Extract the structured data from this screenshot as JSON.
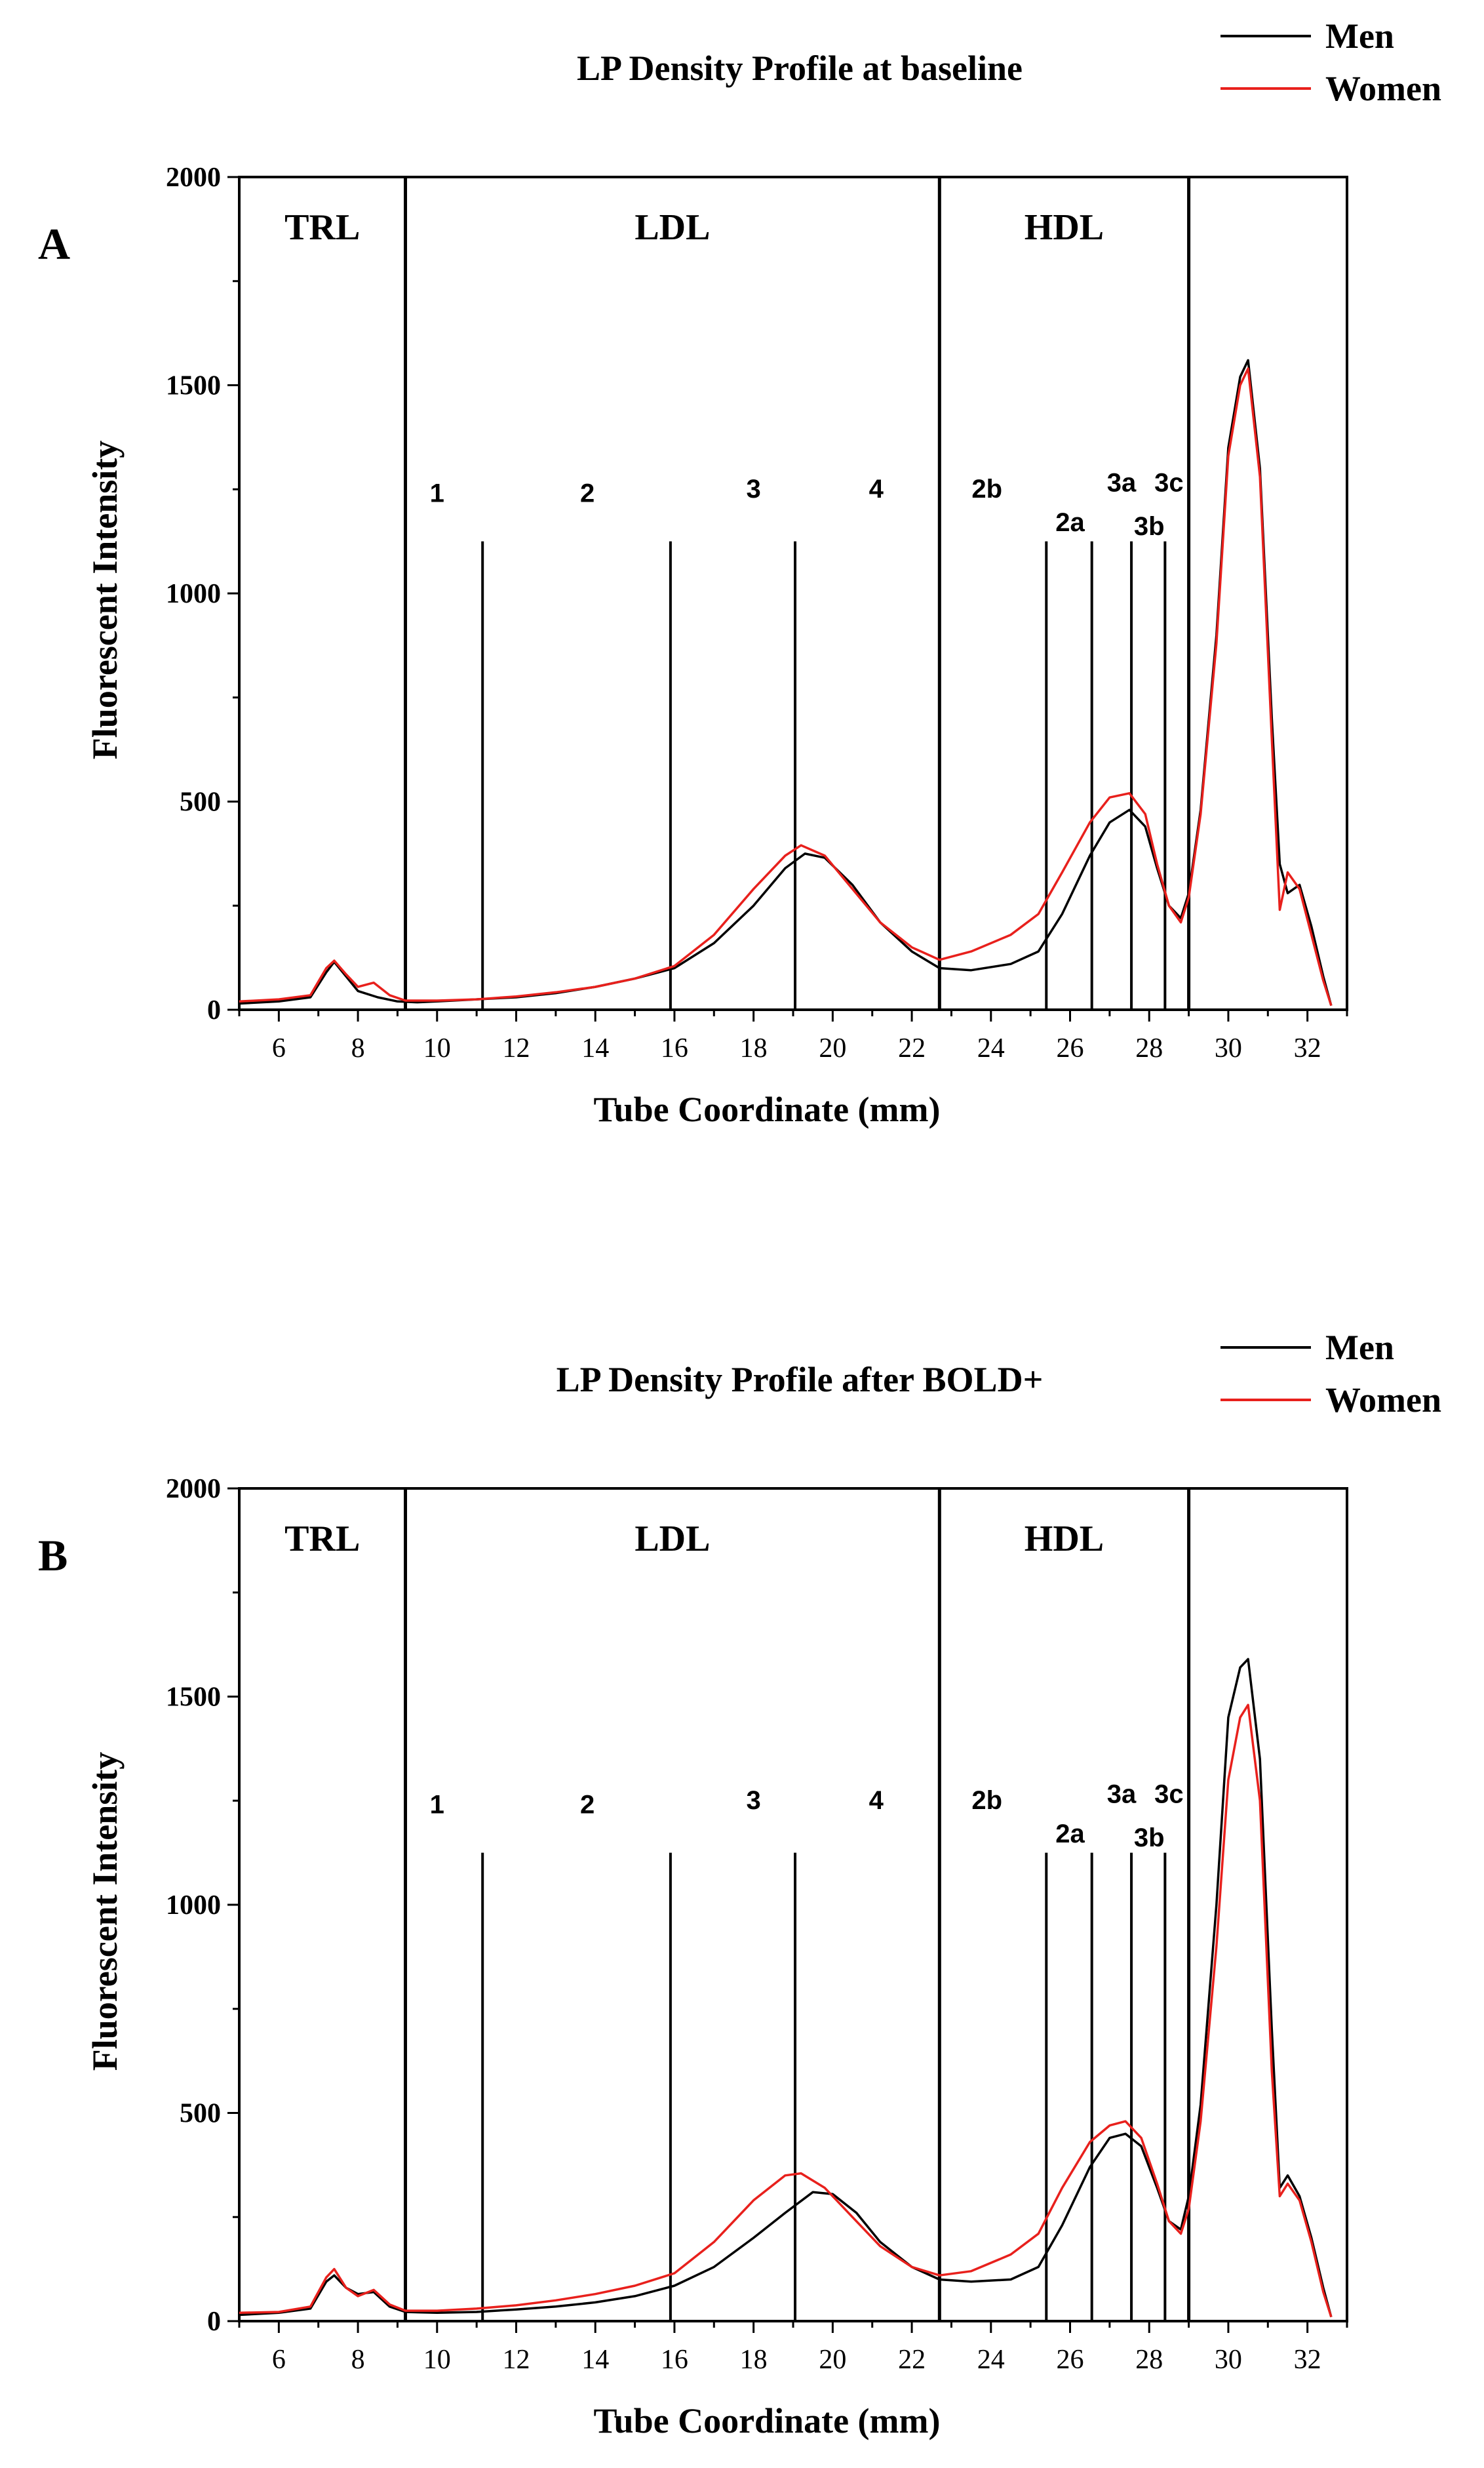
{
  "chart_data": [
    {
      "panel_label": "A",
      "type": "line",
      "title": "LP Density Profile at baseline",
      "xlabel": "Tube Coordinate (mm)",
      "ylabel": "Fluorescent Intensity",
      "xlim": [
        5,
        33
      ],
      "ylim": [
        0,
        2000
      ],
      "x_ticks": [
        6,
        8,
        10,
        12,
        14,
        16,
        18,
        20,
        22,
        24,
        26,
        28,
        30,
        32
      ],
      "y_ticks": [
        0,
        500,
        1000,
        1500,
        2000
      ],
      "legend_position": "top-right",
      "regions": [
        {
          "label": "TRL",
          "from": 5,
          "to": 9.2
        },
        {
          "label": "LDL",
          "from": 9.2,
          "to": 22.7
        },
        {
          "label": "HDL",
          "from": 22.7,
          "to": 29.0
        }
      ],
      "region_boundaries": [
        9.2,
        22.7,
        29.0
      ],
      "subclass_lines": [
        11.15,
        15.9,
        19.05,
        25.4,
        26.55,
        27.55,
        28.4
      ],
      "subclass_labels": [
        {
          "label": "1",
          "x": 10.0,
          "y": 1220
        },
        {
          "label": "2",
          "x": 13.8,
          "y": 1220
        },
        {
          "label": "3",
          "x": 18.0,
          "y": 1230
        },
        {
          "label": "4",
          "x": 21.1,
          "y": 1230
        },
        {
          "label": "2b",
          "x": 23.9,
          "y": 1230
        },
        {
          "label": "2a",
          "x": 26.0,
          "y": 1150
        },
        {
          "label": "3a",
          "x": 27.3,
          "y": 1245
        },
        {
          "label": "3b",
          "x": 28.0,
          "y": 1140
        },
        {
          "label": "3c",
          "x": 28.5,
          "y": 1245
        }
      ],
      "series": [
        {
          "name": "Men",
          "color": "#000000",
          "x": [
            5,
            6,
            6.8,
            7.2,
            7.4,
            7.7,
            8.0,
            8.5,
            9.0,
            9.5,
            10,
            11,
            12,
            13,
            14,
            15,
            16,
            17,
            18,
            18.8,
            19.3,
            19.8,
            20.5,
            21.2,
            22,
            22.7,
            23.5,
            24.5,
            25.2,
            25.8,
            26.5,
            27.0,
            27.5,
            27.9,
            28.2,
            28.5,
            28.8,
            29.0,
            29.3,
            29.7,
            30.0,
            30.3,
            30.5,
            30.8,
            31.1,
            31.3,
            31.5,
            31.8,
            32.1,
            32.4,
            32.6
          ],
          "y": [
            15,
            20,
            30,
            90,
            115,
            80,
            45,
            30,
            20,
            18,
            20,
            25,
            30,
            40,
            55,
            75,
            100,
            160,
            250,
            340,
            375,
            365,
            300,
            210,
            140,
            100,
            95,
            110,
            140,
            230,
            370,
            450,
            480,
            440,
            340,
            250,
            220,
            280,
            480,
            900,
            1350,
            1520,
            1560,
            1300,
            700,
            350,
            280,
            300,
            200,
            80,
            10
          ]
        },
        {
          "name": "Women",
          "color": "#e8201c",
          "x": [
            5,
            6,
            6.8,
            7.2,
            7.4,
            7.7,
            8.0,
            8.4,
            8.8,
            9.2,
            10,
            11,
            12,
            13,
            14,
            15,
            16,
            17,
            18,
            18.8,
            19.2,
            19.8,
            20.5,
            21.2,
            22,
            22.7,
            23.5,
            24.5,
            25.2,
            25.8,
            26.5,
            27.0,
            27.5,
            27.9,
            28.2,
            28.5,
            28.8,
            29.0,
            29.3,
            29.7,
            30.0,
            30.3,
            30.5,
            30.8,
            31.1,
            31.3,
            31.5,
            31.8,
            32.1,
            32.4,
            32.6
          ],
          "y": [
            20,
            25,
            35,
            100,
            118,
            85,
            55,
            65,
            35,
            22,
            22,
            25,
            32,
            42,
            55,
            75,
            105,
            180,
            290,
            370,
            395,
            370,
            290,
            210,
            150,
            120,
            140,
            180,
            230,
            330,
            450,
            510,
            520,
            470,
            350,
            250,
            210,
            270,
            470,
            880,
            1330,
            1500,
            1540,
            1280,
            650,
            240,
            330,
            290,
            180,
            70,
            10
          ]
        }
      ]
    },
    {
      "panel_label": "B",
      "type": "line",
      "title": "LP Density Profile after BOLD+",
      "xlabel": "Tube Coordinate (mm)",
      "ylabel": "Fluorescent Intensity",
      "xlim": [
        5,
        33
      ],
      "ylim": [
        0,
        2000
      ],
      "x_ticks": [
        6,
        8,
        10,
        12,
        14,
        16,
        18,
        20,
        22,
        24,
        26,
        28,
        30,
        32
      ],
      "y_ticks": [
        0,
        500,
        1000,
        1500,
        2000
      ],
      "legend_position": "top-right",
      "regions": [
        {
          "label": "TRL",
          "from": 5,
          "to": 9.2
        },
        {
          "label": "LDL",
          "from": 9.2,
          "to": 22.7
        },
        {
          "label": "HDL",
          "from": 22.7,
          "to": 29.0
        }
      ],
      "region_boundaries": [
        9.2,
        22.7,
        29.0
      ],
      "subclass_lines": [
        11.15,
        15.9,
        19.05,
        25.4,
        26.55,
        27.55,
        28.4
      ],
      "subclass_labels": [
        {
          "label": "1",
          "x": 10.0,
          "y": 1220
        },
        {
          "label": "2",
          "x": 13.8,
          "y": 1220
        },
        {
          "label": "3",
          "x": 18.0,
          "y": 1230
        },
        {
          "label": "4",
          "x": 21.1,
          "y": 1230
        },
        {
          "label": "2b",
          "x": 23.9,
          "y": 1230
        },
        {
          "label": "2a",
          "x": 26.0,
          "y": 1150
        },
        {
          "label": "3a",
          "x": 27.3,
          "y": 1245
        },
        {
          "label": "3b",
          "x": 28.0,
          "y": 1140
        },
        {
          "label": "3c",
          "x": 28.5,
          "y": 1245
        }
      ],
      "series": [
        {
          "name": "Men",
          "color": "#000000",
          "x": [
            5,
            6,
            6.8,
            7.2,
            7.4,
            7.7,
            8.0,
            8.4,
            8.8,
            9.2,
            10,
            11,
            12,
            13,
            14,
            15,
            16,
            17,
            18,
            18.8,
            19.5,
            20.0,
            20.6,
            21.2,
            22,
            22.7,
            23.5,
            24.5,
            25.2,
            25.8,
            26.5,
            27.0,
            27.4,
            27.8,
            28.2,
            28.5,
            28.8,
            29.0,
            29.3,
            29.7,
            30.0,
            30.3,
            30.5,
            30.8,
            31.1,
            31.3,
            31.5,
            31.8,
            32.1,
            32.4,
            32.6
          ],
          "y": [
            15,
            20,
            30,
            95,
            110,
            80,
            65,
            70,
            35,
            22,
            20,
            22,
            28,
            35,
            45,
            60,
            85,
            130,
            200,
            260,
            310,
            305,
            260,
            190,
            130,
            100,
            95,
            100,
            130,
            230,
            370,
            440,
            450,
            420,
            320,
            240,
            220,
            300,
            520,
            1000,
            1450,
            1570,
            1590,
            1350,
            700,
            320,
            350,
            300,
            200,
            80,
            10
          ]
        },
        {
          "name": "Women",
          "color": "#e8201c",
          "x": [
            5,
            6,
            6.8,
            7.2,
            7.4,
            7.7,
            8.0,
            8.4,
            8.8,
            9.2,
            10,
            11,
            12,
            13,
            14,
            15,
            16,
            17,
            18,
            18.8,
            19.2,
            19.8,
            20.5,
            21.2,
            22,
            22.7,
            23.5,
            24.5,
            25.2,
            25.8,
            26.5,
            27.0,
            27.4,
            27.8,
            28.2,
            28.5,
            28.8,
            29.0,
            29.3,
            29.7,
            30.0,
            30.3,
            30.5,
            30.8,
            31.1,
            31.3,
            31.5,
            31.8,
            32.1,
            32.4,
            32.6
          ],
          "y": [
            20,
            22,
            35,
            105,
            125,
            80,
            60,
            75,
            40,
            25,
            25,
            30,
            38,
            50,
            65,
            85,
            115,
            190,
            290,
            350,
            355,
            320,
            250,
            180,
            130,
            110,
            120,
            160,
            210,
            320,
            430,
            470,
            480,
            440,
            330,
            240,
            210,
            270,
            480,
            900,
            1300,
            1450,
            1480,
            1250,
            600,
            300,
            330,
            290,
            190,
            70,
            10
          ]
        }
      ]
    }
  ]
}
